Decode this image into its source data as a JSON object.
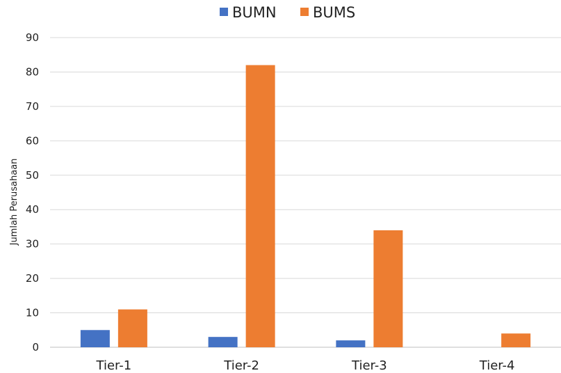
{
  "chart_data": {
    "type": "bar",
    "title": "",
    "xlabel": "",
    "ylabel": "Jumlah Perusahaan",
    "ylim": [
      0,
      90
    ],
    "yticks": [
      0,
      10,
      20,
      30,
      40,
      50,
      60,
      70,
      80,
      90
    ],
    "grid": true,
    "legend": "top-center",
    "categories": [
      "Tier-1",
      "Tier-2",
      "Tier-3",
      "Tier-4"
    ],
    "series": [
      {
        "name": "BUMN",
        "color": "#4472C4",
        "values": [
          5,
          3,
          2,
          0
        ]
      },
      {
        "name": "BUMS",
        "color": "#ED7D31",
        "values": [
          11,
          82,
          34,
          4
        ]
      }
    ]
  }
}
